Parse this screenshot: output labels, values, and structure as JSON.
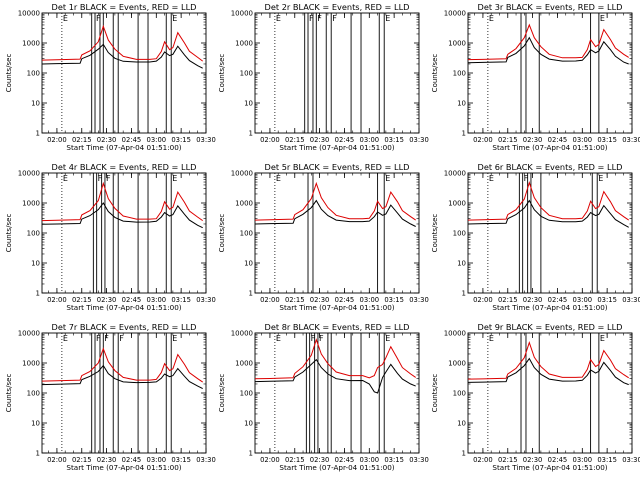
{
  "chart_data": {
    "type": "line",
    "x_ticks": [
      "02:00",
      "02:15",
      "02:30",
      "02:45",
      "03:00",
      "03:15",
      "03:30"
    ],
    "x_range": [
      "01:51:00",
      "03:30:00"
    ],
    "ylabel": "Counts/sec",
    "xlabel": "Start Time (07-Apr-04 01:51:00)",
    "y_scale": "log",
    "ylim": [
      1,
      10000
    ],
    "y_ticks": [
      "1",
      "10",
      "100",
      "1000",
      "10000"
    ],
    "series_colors": {
      "Events": "#000000",
      "LLD": "#dd0000"
    },
    "panels": [
      {
        "title": "Det 1r BLACK = Events, RED = LLD",
        "flags": [
          "E",
          "F",
          "E"
        ],
        "markers": {
          "dotted": [
            "02:03"
          ],
          "solid": [
            "02:21",
            "02:23",
            "02:26",
            "02:28",
            "02:34",
            "02:37",
            "02:49",
            "02:55",
            "03:06",
            "03:09"
          ]
        },
        "times": [
          "01:51",
          "02:00",
          "02:14",
          "02:15",
          "02:20",
          "02:25",
          "02:28",
          "02:31",
          "02:35",
          "02:40",
          "02:48",
          "02:56",
          "03:00",
          "03:03",
          "03:05",
          "03:08",
          "03:10",
          "03:13",
          "03:17",
          "03:20",
          "03:25",
          "03:28"
        ],
        "events": [
          200,
          205,
          212,
          300,
          390,
          620,
          900,
          480,
          310,
          245,
          232,
          233,
          250,
          340,
          500,
          380,
          420,
          780,
          400,
          260,
          175,
          145
        ],
        "lld": [
          270,
          275,
          290,
          400,
          550,
          1100,
          3600,
          1250,
          620,
          360,
          285,
          285,
          300,
          520,
          1100,
          600,
          700,
          2200,
          1000,
          530,
          330,
          250
        ]
      },
      {
        "title": "Det 2r BLACK = Events, RED = LLD",
        "flags": [
          "E",
          "F",
          "F",
          "F",
          "E"
        ],
        "markers": {
          "dotted": [
            "02:03"
          ],
          "solid": [
            "02:21",
            "02:23",
            "02:26",
            "02:28",
            "02:34",
            "02:37",
            "02:49",
            "02:55",
            "03:06",
            "03:09"
          ]
        },
        "times": [],
        "events": [],
        "lld": []
      },
      {
        "title": "Det 3r BLACK = Events, RED = LLD",
        "flags": [
          "E",
          "E"
        ],
        "markers": {
          "dotted": [
            "02:03"
          ],
          "solid": [
            "02:23",
            "02:26",
            "02:34",
            "03:05",
            "03:10"
          ]
        },
        "times": [
          "01:51",
          "02:00",
          "02:14",
          "02:15",
          "02:20",
          "02:25",
          "02:28",
          "02:31",
          "02:35",
          "02:40",
          "02:48",
          "02:56",
          "03:00",
          "03:03",
          "03:05",
          "03:08",
          "03:10",
          "03:13",
          "03:17",
          "03:20",
          "03:25",
          "03:28"
        ],
        "events": [
          220,
          225,
          235,
          330,
          450,
          800,
          1500,
          700,
          420,
          290,
          250,
          252,
          265,
          400,
          600,
          470,
          540,
          1100,
          600,
          360,
          230,
          200
        ],
        "lld": [
          280,
          285,
          300,
          420,
          650,
          1500,
          4000,
          1500,
          750,
          420,
          320,
          320,
          330,
          600,
          1300,
          750,
          900,
          2800,
          1300,
          680,
          420,
          330
        ]
      },
      {
        "title": "Det 4r BLACK = Events, RED = LLD",
        "flags": [
          "E",
          "F",
          "F",
          "E"
        ],
        "markers": {
          "dotted": [
            "02:03"
          ],
          "solid": [
            "02:22",
            "02:24",
            "02:27",
            "02:29",
            "02:34",
            "02:37",
            "02:49",
            "02:55",
            "03:06",
            "03:09"
          ]
        },
        "times": [
          "01:51",
          "02:00",
          "02:14",
          "02:15",
          "02:20",
          "02:25",
          "02:28",
          "02:31",
          "02:35",
          "02:40",
          "02:48",
          "02:56",
          "03:00",
          "03:03",
          "03:05",
          "03:08",
          "03:10",
          "03:13",
          "03:17",
          "03:20",
          "03:25",
          "03:28"
        ],
        "events": [
          195,
          200,
          208,
          290,
          380,
          600,
          1000,
          520,
          330,
          250,
          230,
          232,
          245,
          340,
          480,
          370,
          410,
          800,
          420,
          270,
          180,
          150
        ],
        "lld": [
          260,
          265,
          280,
          400,
          560,
          1200,
          4500,
          1400,
          660,
          370,
          290,
          290,
          300,
          520,
          1100,
          620,
          720,
          2300,
          1050,
          540,
          340,
          260
        ]
      },
      {
        "title": "Det 5r BLACK = Events, RED = LLD",
        "flags": [
          "E",
          "E"
        ],
        "markers": {
          "dotted": [
            "02:03"
          ],
          "solid": [
            "02:23",
            "02:26",
            "03:05",
            "03:09"
          ]
        },
        "times": [
          "01:51",
          "02:00",
          "02:14",
          "02:15",
          "02:20",
          "02:25",
          "02:28",
          "02:31",
          "02:35",
          "02:40",
          "02:48",
          "02:56",
          "03:00",
          "03:03",
          "03:05",
          "03:08",
          "03:10",
          "03:13",
          "03:17",
          "03:20",
          "03:25",
          "03:28"
        ],
        "events": [
          200,
          205,
          212,
          300,
          420,
          700,
          1200,
          620,
          380,
          270,
          240,
          240,
          250,
          350,
          500,
          390,
          430,
          850,
          460,
          290,
          200,
          165
        ],
        "lld": [
          270,
          275,
          290,
          410,
          600,
          1400,
          4500,
          1500,
          700,
          390,
          300,
          300,
          310,
          540,
          1150,
          650,
          750,
          2300,
          1100,
          560,
          350,
          270
        ]
      },
      {
        "title": "Det 6r BLACK = Events, RED = LLD",
        "flags": [
          "E",
          "F",
          "E"
        ],
        "markers": {
          "dotted": [
            "02:03"
          ],
          "solid": [
            "02:22",
            "02:24",
            "02:27",
            "02:29",
            "02:35",
            "03:06",
            "03:09"
          ]
        },
        "times": [
          "01:51",
          "02:00",
          "02:14",
          "02:15",
          "02:20",
          "02:25",
          "02:28",
          "02:31",
          "02:35",
          "02:40",
          "02:48",
          "02:56",
          "03:00",
          "03:03",
          "03:05",
          "03:08",
          "03:10",
          "03:13",
          "03:17",
          "03:20",
          "03:25",
          "03:28"
        ],
        "events": [
          200,
          205,
          212,
          300,
          410,
          680,
          1200,
          600,
          360,
          265,
          238,
          238,
          250,
          340,
          480,
          380,
          420,
          820,
          440,
          280,
          190,
          155
        ],
        "lld": [
          270,
          275,
          290,
          410,
          600,
          1350,
          4800,
          1500,
          700,
          390,
          300,
          300,
          310,
          540,
          1150,
          650,
          750,
          2400,
          1100,
          560,
          350,
          270
        ]
      },
      {
        "title": "Det 7r BLACK = Events, RED = LLD",
        "flags": [
          "E",
          "F",
          "F",
          "F",
          "E"
        ],
        "markers": {
          "dotted": [
            "02:03"
          ],
          "solid": [
            "02:21",
            "02:23",
            "02:26",
            "02:28",
            "02:34",
            "02:37",
            "02:49",
            "02:55",
            "03:06",
            "03:09"
          ]
        },
        "times": [
          "01:51",
          "02:00",
          "02:14",
          "02:15",
          "02:20",
          "02:25",
          "02:28",
          "02:31",
          "02:35",
          "02:40",
          "02:48",
          "02:56",
          "03:00",
          "03:03",
          "03:05",
          "03:08",
          "03:10",
          "03:13",
          "03:17",
          "03:20",
          "03:25",
          "03:28"
        ],
        "events": [
          190,
          195,
          205,
          280,
          360,
          520,
          820,
          440,
          300,
          235,
          222,
          225,
          235,
          310,
          430,
          350,
          380,
          650,
          360,
          240,
          170,
          140
        ],
        "lld": [
          250,
          255,
          270,
          380,
          520,
          1000,
          3000,
          1100,
          560,
          330,
          270,
          270,
          285,
          480,
          950,
          560,
          640,
          1900,
          900,
          480,
          300,
          230
        ]
      },
      {
        "title": "Det 8r BLACK = Events, RED = LLD",
        "flags": [
          "E",
          "F",
          "F",
          "E"
        ],
        "markers": {
          "dotted": [
            "02:03"
          ],
          "solid": [
            "02:22",
            "02:24",
            "02:27",
            "02:29",
            "02:35",
            "02:37",
            "02:49",
            "02:55",
            "03:06",
            "03:09"
          ]
        },
        "times": [
          "01:51",
          "02:00",
          "02:14",
          "02:15",
          "02:20",
          "02:25",
          "02:28",
          "02:31",
          "02:35",
          "02:40",
          "02:48",
          "02:56",
          "03:00",
          "03:03",
          "03:05",
          "03:08",
          "03:10",
          "03:13",
          "03:17",
          "03:20",
          "03:25",
          "03:28"
        ],
        "events": [
          240,
          245,
          255,
          340,
          500,
          900,
          1300,
          700,
          430,
          300,
          260,
          262,
          200,
          110,
          100,
          330,
          500,
          900,
          450,
          290,
          200,
          170
        ],
        "lld": [
          300,
          305,
          320,
          450,
          750,
          1800,
          6000,
          2000,
          950,
          500,
          380,
          380,
          320,
          380,
          700,
          900,
          1500,
          3500,
          1400,
          700,
          430,
          330
        ]
      },
      {
        "title": "Det 9r BLACK = Events, RED = LLD",
        "flags": [
          "E",
          "E"
        ],
        "markers": {
          "dotted": [
            "02:03"
          ],
          "solid": [
            "02:23",
            "02:26",
            "02:34",
            "03:05",
            "03:10"
          ]
        },
        "times": [
          "01:51",
          "02:00",
          "02:14",
          "02:15",
          "02:20",
          "02:25",
          "02:28",
          "02:31",
          "02:35",
          "02:40",
          "02:48",
          "02:56",
          "03:00",
          "03:03",
          "03:05",
          "03:08",
          "03:10",
          "03:13",
          "03:17",
          "03:20",
          "03:25",
          "03:28"
        ],
        "events": [
          225,
          230,
          240,
          340,
          470,
          820,
          1400,
          700,
          420,
          290,
          250,
          252,
          265,
          390,
          590,
          460,
          530,
          1050,
          560,
          340,
          220,
          190
        ],
        "lld": [
          290,
          295,
          310,
          430,
          660,
          1500,
          4800,
          1550,
          760,
          430,
          330,
          330,
          340,
          610,
          1300,
          760,
          900,
          2600,
          1250,
          650,
          410,
          320
        ]
      }
    ]
  }
}
